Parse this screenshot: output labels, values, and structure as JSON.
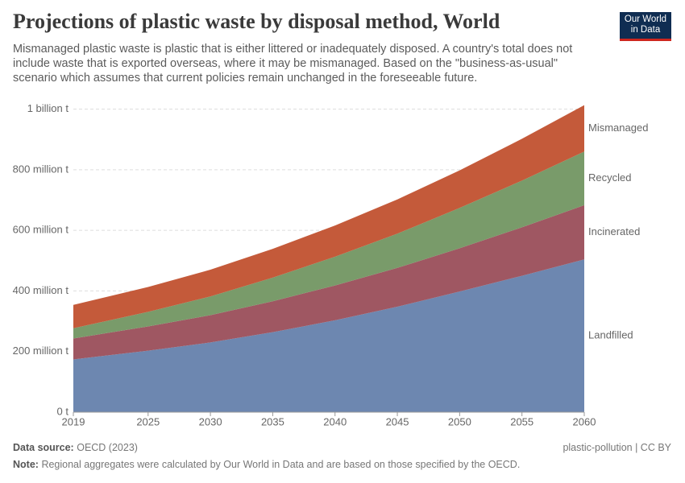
{
  "chart_data": {
    "type": "stacked-area",
    "title": "Projections of plastic waste by disposal method, World",
    "subtitle": "Mismanaged plastic waste is plastic that is either littered or inadequately disposed. A country's total does not include waste that is exported overseas, where it may be mismanaged. Based on the \"business-as-usual\" scenario which assumes that current policies remain unchanged in the foreseeable future.",
    "logo": "Our World in Data",
    "x": [
      2019,
      2025,
      2030,
      2035,
      2040,
      2045,
      2050,
      2055,
      2060
    ],
    "xlim": [
      2019,
      2060
    ],
    "xticks": [
      2019,
      2025,
      2030,
      2035,
      2040,
      2045,
      2050,
      2055,
      2060
    ],
    "ylim": [
      0,
      1020000000
    ],
    "yticks": [
      {
        "value": 0,
        "label": "0 t"
      },
      {
        "value": 200000000,
        "label": "200 million t"
      },
      {
        "value": 400000000,
        "label": "400 million t"
      },
      {
        "value": 600000000,
        "label": "600 million t"
      },
      {
        "value": 800000000,
        "label": "800 million t"
      },
      {
        "value": 1000000000,
        "label": "1 billion t"
      }
    ],
    "grid": true,
    "series": [
      {
        "name": "Landfilled",
        "color": "#6d87b0",
        "label_color": "#4c6a9c",
        "values": [
          174000000,
          203000000,
          230000000,
          264000000,
          303000000,
          348000000,
          398000000,
          450000000,
          504000000
        ]
      },
      {
        "name": "Incinerated",
        "color": "#9f5762",
        "label_color": "#883039",
        "values": [
          69000000,
          80000000,
          90000000,
          102000000,
          115000000,
          128000000,
          143000000,
          160000000,
          179000000
        ]
      },
      {
        "name": "Recycled",
        "color": "#799b6a",
        "label_color": "#578145",
        "values": [
          34000000,
          48000000,
          62000000,
          78000000,
          95000000,
          113000000,
          133000000,
          154000000,
          177000000
        ]
      },
      {
        "name": "Mismanaged",
        "color": "#c45a3a",
        "label_color": "#b13507",
        "values": [
          77000000,
          82000000,
          88000000,
          95000000,
          103000000,
          113000000,
          124000000,
          138000000,
          153000000
        ]
      }
    ],
    "source_label": "Data source:",
    "source": "OECD (2023)",
    "credit": "plastic-pollution | CC BY",
    "note_label": "Note:",
    "note": "Regional aggregates were calculated by Our World in Data and are based on those specified by the OECD."
  }
}
